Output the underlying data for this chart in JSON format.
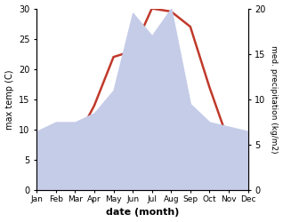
{
  "months": [
    "Jan",
    "Feb",
    "Mar",
    "Apr",
    "May",
    "Jun",
    "Jul",
    "Aug",
    "Sep",
    "Oct",
    "Nov",
    "Dec"
  ],
  "temp": [
    0.5,
    2.0,
    8.0,
    14.0,
    22.0,
    23.0,
    30.0,
    29.5,
    27.0,
    17.0,
    8.0,
    2.0
  ],
  "precip": [
    6.5,
    7.5,
    7.5,
    8.5,
    11.0,
    19.5,
    17.0,
    20.0,
    9.5,
    7.5,
    7.0,
    6.5
  ],
  "temp_color": "#c0392b",
  "precip_color_fill": "#c5cce8",
  "title": "",
  "xlabel": "date (month)",
  "ylabel_left": "max temp (C)",
  "ylabel_right": "med. precipitation (kg/m2)",
  "ylim_left": [
    0,
    30
  ],
  "ylim_right": [
    0,
    20
  ],
  "yticks_left": [
    0,
    5,
    10,
    15,
    20,
    25,
    30
  ],
  "yticks_right": [
    0,
    5,
    10,
    15,
    20
  ],
  "background_color": "#ffffff"
}
